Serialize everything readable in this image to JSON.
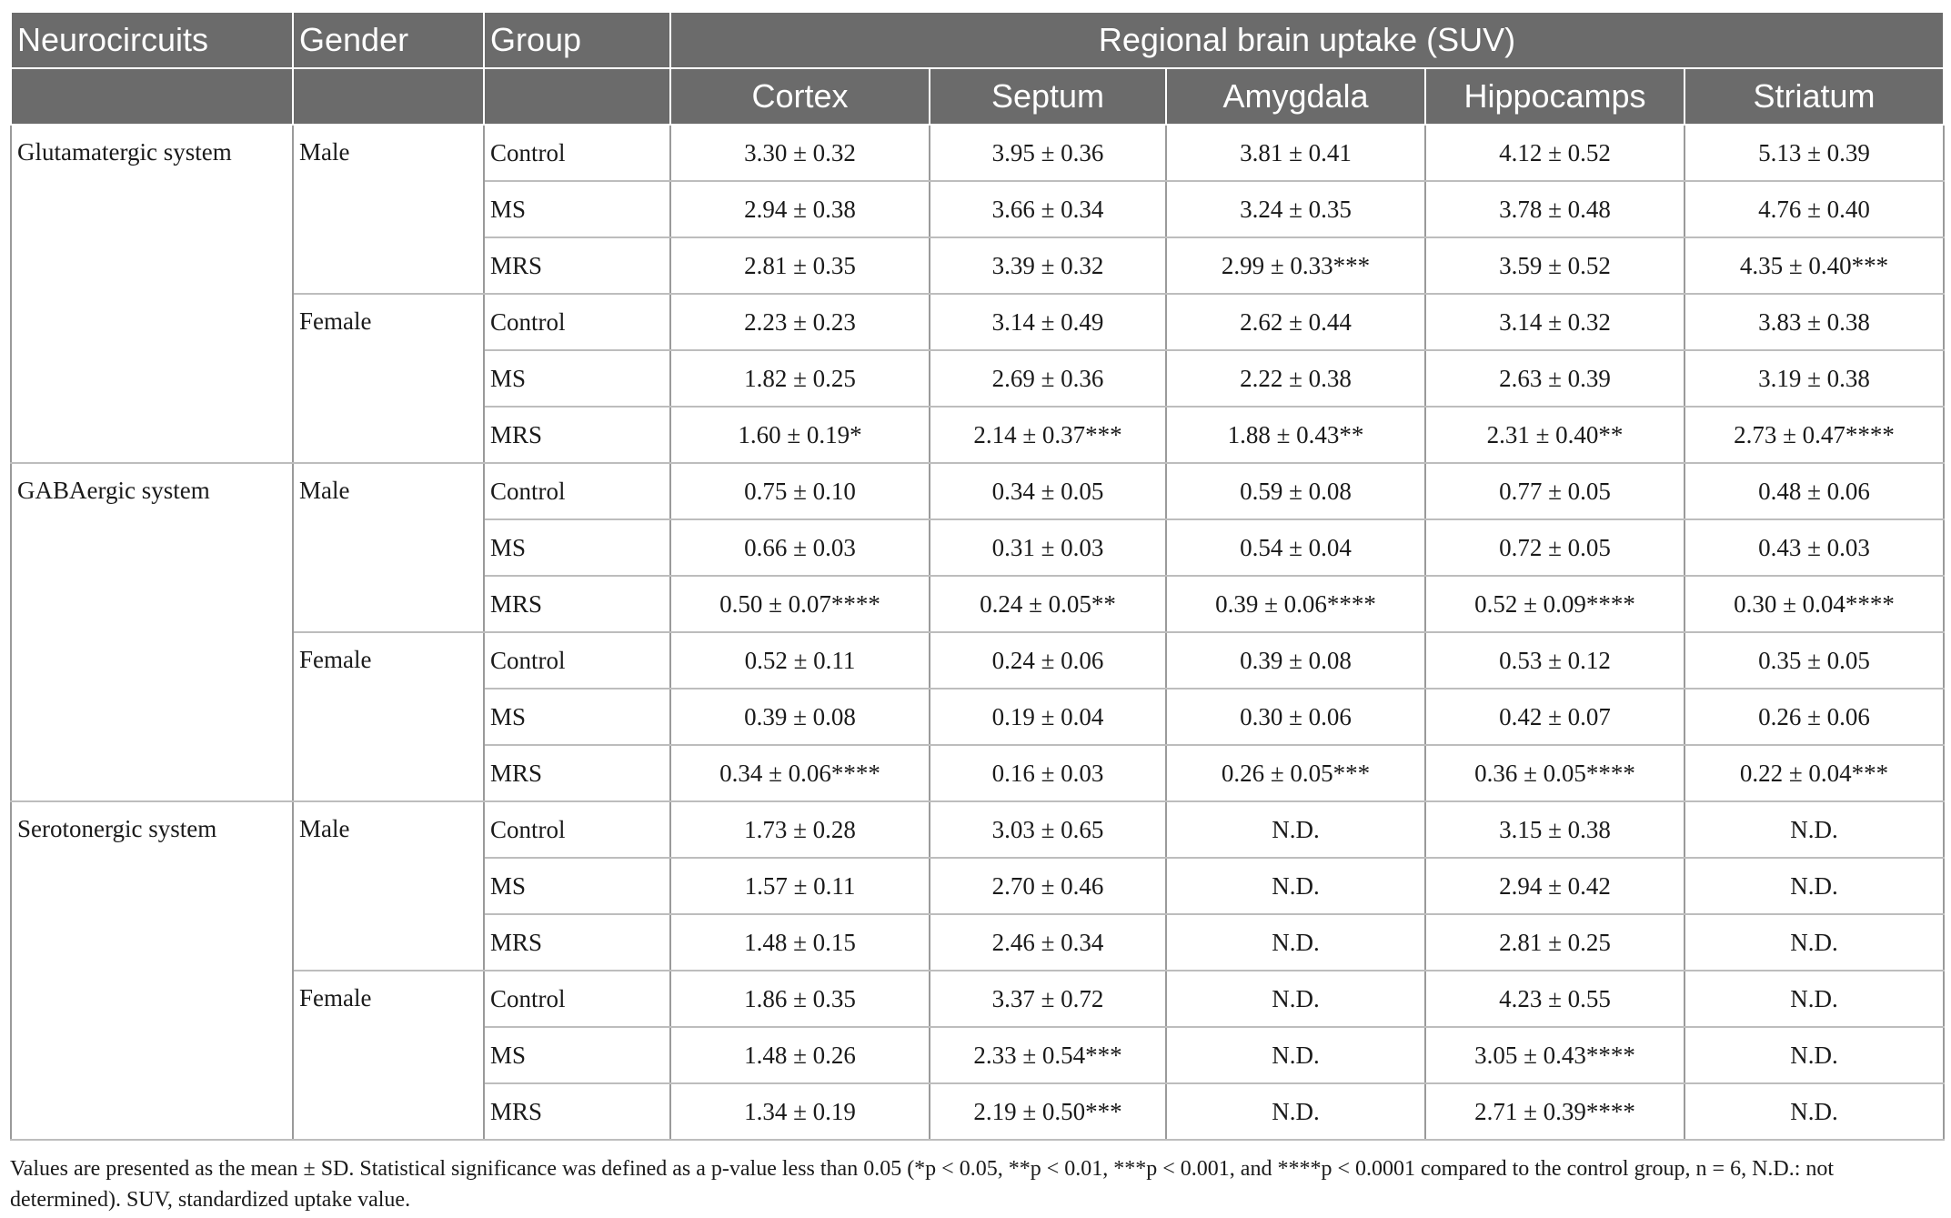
{
  "table": {
    "headers": {
      "neurocircuits": "Neurocircuits",
      "gender": "Gender",
      "group": "Group",
      "uptake": "Regional brain uptake (SUV)",
      "regions": [
        "Cortex",
        "Septum",
        "Amygdala",
        "Hippocamps",
        "Striatum"
      ]
    },
    "sections": [
      {
        "system": "Glutamatergic system",
        "genders": [
          {
            "gender": "Male",
            "rows": [
              {
                "group": "Control",
                "values": [
                  "3.30 ± 0.32",
                  "3.95 ± 0.36",
                  "3.81 ± 0.41",
                  "4.12 ± 0.52",
                  "5.13 ± 0.39"
                ]
              },
              {
                "group": "MS",
                "values": [
                  "2.94 ± 0.38",
                  "3.66 ± 0.34",
                  "3.24 ± 0.35",
                  "3.78 ± 0.48",
                  "4.76 ± 0.40"
                ]
              },
              {
                "group": "MRS",
                "values": [
                  "2.81 ± 0.35",
                  "3.39 ± 0.32",
                  "2.99 ± 0.33***",
                  "3.59 ± 0.52",
                  "4.35 ± 0.40***"
                ]
              }
            ]
          },
          {
            "gender": "Female",
            "rows": [
              {
                "group": "Control",
                "values": [
                  "2.23 ± 0.23",
                  "3.14 ± 0.49",
                  "2.62 ± 0.44",
                  "3.14 ± 0.32",
                  "3.83 ± 0.38"
                ]
              },
              {
                "group": "MS",
                "values": [
                  "1.82 ± 0.25",
                  "2.69 ± 0.36",
                  "2.22 ± 0.38",
                  "2.63 ± 0.39",
                  "3.19 ± 0.38"
                ]
              },
              {
                "group": "MRS",
                "values": [
                  "1.60 ± 0.19*",
                  "2.14 ± 0.37***",
                  "1.88 ± 0.43**",
                  "2.31 ± 0.40**",
                  "2.73 ± 0.47****"
                ]
              }
            ]
          }
        ]
      },
      {
        "system": "GABAergic system",
        "genders": [
          {
            "gender": "Male",
            "rows": [
              {
                "group": "Control",
                "values": [
                  "0.75 ± 0.10",
                  "0.34 ± 0.05",
                  "0.59 ± 0.08",
                  "0.77 ± 0.05",
                  "0.48 ± 0.06"
                ]
              },
              {
                "group": "MS",
                "values": [
                  "0.66 ± 0.03",
                  "0.31 ± 0.03",
                  "0.54 ± 0.04",
                  "0.72 ± 0.05",
                  "0.43 ± 0.03"
                ]
              },
              {
                "group": "MRS",
                "values": [
                  "0.50 ± 0.07****",
                  "0.24 ± 0.05**",
                  "0.39 ± 0.06****",
                  "0.52 ± 0.09****",
                  "0.30 ± 0.04****"
                ]
              }
            ]
          },
          {
            "gender": "Female",
            "rows": [
              {
                "group": "Control",
                "values": [
                  "0.52 ± 0.11",
                  "0.24 ± 0.06",
                  "0.39 ± 0.08",
                  "0.53 ± 0.12",
                  "0.35 ± 0.05"
                ]
              },
              {
                "group": "MS",
                "values": [
                  "0.39 ± 0.08",
                  "0.19 ± 0.04",
                  "0.30 ± 0.06",
                  "0.42 ± 0.07",
                  "0.26 ± 0.06"
                ]
              },
              {
                "group": "MRS",
                "values": [
                  "0.34 ± 0.06****",
                  "0.16 ± 0.03",
                  "0.26 ± 0.05***",
                  "0.36 ± 0.05****",
                  "0.22 ± 0.04***"
                ]
              }
            ]
          }
        ]
      },
      {
        "system": "Serotonergic system",
        "genders": [
          {
            "gender": "Male",
            "rows": [
              {
                "group": "Control",
                "values": [
                  "1.73 ± 0.28",
                  "3.03 ± 0.65",
                  "N.D.",
                  "3.15 ± 0.38",
                  "N.D."
                ]
              },
              {
                "group": "MS",
                "values": [
                  "1.57 ± 0.11",
                  "2.70 ± 0.46",
                  "N.D.",
                  "2.94 ± 0.42",
                  "N.D."
                ]
              },
              {
                "group": "MRS",
                "values": [
                  "1.48 ± 0.15",
                  "2.46 ± 0.34",
                  "N.D.",
                  "2.81 ± 0.25",
                  "N.D."
                ]
              }
            ]
          },
          {
            "gender": "Female",
            "rows": [
              {
                "group": "Control",
                "values": [
                  "1.86 ± 0.35",
                  "3.37 ± 0.72",
                  "N.D.",
                  "4.23 ± 0.55",
                  "N.D."
                ]
              },
              {
                "group": "MS",
                "values": [
                  "1.48 ± 0.26",
                  "2.33 ± 0.54***",
                  "N.D.",
                  "3.05 ± 0.43****",
                  "N.D."
                ]
              },
              {
                "group": "MRS",
                "values": [
                  "1.34 ± 0.19",
                  "2.19 ± 0.50***",
                  "N.D.",
                  "2.71 ± 0.39****",
                  "N.D."
                ]
              }
            ]
          }
        ]
      }
    ]
  },
  "footnote": "Values are presented as the mean ± SD. Statistical significance was defined as a p-value less than 0.05 (*p < 0.05, **p < 0.01, ***p < 0.001, and ****p < 0.0001 compared to the control group, n = 6, N.D.: not determined). SUV, standardized uptake value."
}
